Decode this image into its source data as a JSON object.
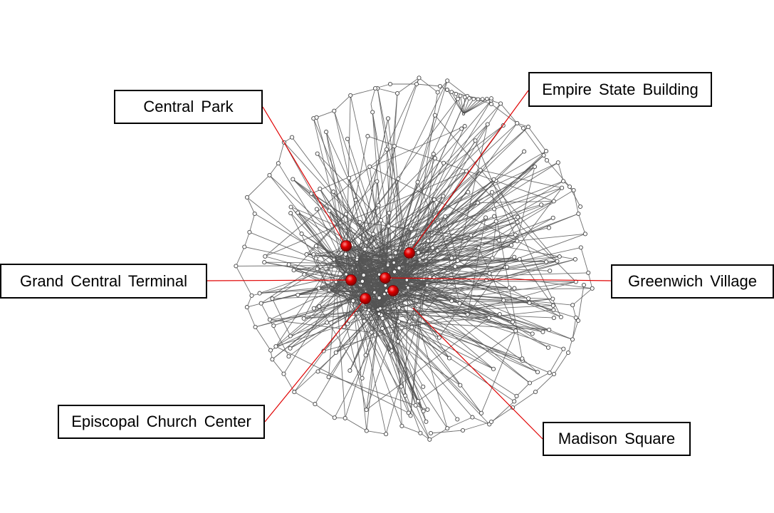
{
  "network": {
    "edge_color": "#555555",
    "node_fill": "#ffffff",
    "node_stroke": "#444444",
    "highlight_color": "#e00000",
    "leader_color": "#e00000"
  },
  "landmarks": [
    {
      "id": "central-park",
      "label": "Central Park"
    },
    {
      "id": "empire-state-building",
      "label": "Empire State Building"
    },
    {
      "id": "grand-central-terminal",
      "label": "Grand Central Terminal"
    },
    {
      "id": "greenwich-village",
      "label": "Greenwich Village"
    },
    {
      "id": "episcopal-church-center",
      "label": "Episcopal Church Center"
    },
    {
      "id": "madison-square",
      "label": "Madison Square"
    }
  ]
}
